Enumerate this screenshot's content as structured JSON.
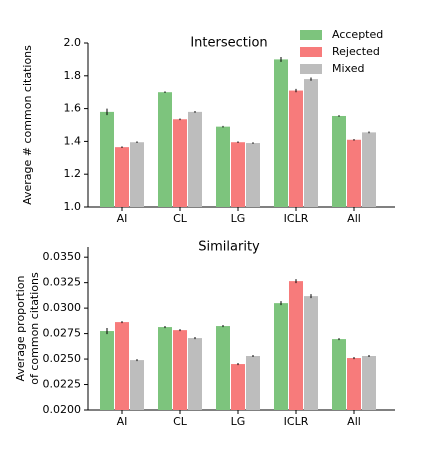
{
  "chart_data": [
    {
      "type": "bar",
      "title": "Intersection",
      "ylabel": [
        "Average # common citations"
      ],
      "categories": [
        "AI",
        "CL",
        "LG",
        "ICLR",
        "All"
      ],
      "series": [
        {
          "name": "Accepted",
          "color": "#7dc47d",
          "values": [
            1.58,
            1.7,
            1.49,
            1.9,
            1.555
          ],
          "errors": [
            0.02,
            0.005,
            0.005,
            0.015,
            0.005
          ]
        },
        {
          "name": "Rejected",
          "color": "#f77b7b",
          "values": [
            1.365,
            1.535,
            1.395,
            1.71,
            1.41
          ],
          "errors": [
            0.005,
            0.005,
            0.005,
            0.01,
            0.005
          ]
        },
        {
          "name": "Mixed",
          "color": "#bdbdbd",
          "values": [
            1.395,
            1.58,
            1.39,
            1.78,
            1.455
          ],
          "errors": [
            0.005,
            0.005,
            0.005,
            0.01,
            0.005
          ]
        }
      ],
      "ylim": [
        1.0,
        2.0
      ],
      "yticks": [
        {
          "value": 1.0,
          "label": "1.0"
        },
        1.2,
        1.4,
        1.6,
        1.8,
        {
          "value": 2.0,
          "label": "2.0"
        }
      ],
      "legend": "upper right"
    },
    {
      "type": "bar",
      "title": "Similarity",
      "ylabel": [
        "Average proportion",
        "of common citations"
      ],
      "categories": [
        "AI",
        "CL",
        "LG",
        "ICLR",
        "All"
      ],
      "series": [
        {
          "color": "#7dc47d",
          "values": [
            0.02775,
            0.02814,
            0.02824,
            0.03049,
            0.02696
          ],
          "errors": [
            0.0003,
            0.0001,
            0.0001,
            0.0002,
            0.0001
          ]
        },
        {
          "color": "#f77b7b",
          "values": [
            0.02863,
            0.02784,
            0.02451,
            0.03265,
            0.0251
          ],
          "errors": [
            0.0001,
            0.0001,
            0.0001,
            0.0002,
            0.0001
          ]
        },
        {
          "color": "#bdbdbd",
          "values": [
            0.0249,
            0.02706,
            0.0253,
            0.03118,
            0.0253
          ],
          "errors": [
            0.0001,
            0.0001,
            0.0001,
            0.0002,
            0.0001
          ]
        }
      ],
      "ylim": [
        0.02,
        0.036
      ],
      "yticks": [
        {
          "value": 0.02,
          "label": "0.0200"
        },
        0.0225,
        {
          "value": 0.025,
          "label": "0.0250"
        },
        0.0275,
        {
          "value": 0.03,
          "label": "0.0300"
        },
        0.0325,
        {
          "value": 0.035,
          "label": "0.0350"
        }
      ]
    }
  ]
}
